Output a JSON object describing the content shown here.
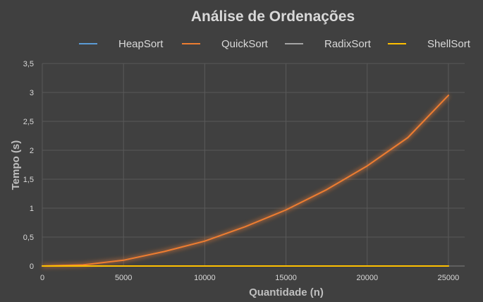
{
  "chart_data": {
    "type": "line",
    "title": "Análise de Ordenações",
    "xlabel": "Quantidade (n)",
    "ylabel": "Tempo (s)",
    "xlim": [
      0,
      26000
    ],
    "ylim": [
      0,
      3.5
    ],
    "xticks": [
      0,
      5000,
      10000,
      15000,
      20000,
      25000
    ],
    "xtick_labels": [
      "0",
      "5000",
      "10000",
      "15000",
      "20000",
      "25000"
    ],
    "yticks": [
      0,
      0.5,
      1,
      1.5,
      2,
      2.5,
      3,
      3.5
    ],
    "ytick_labels": [
      "0",
      "0,5",
      "1",
      "1,5",
      "2",
      "2,5",
      "3",
      "3,5"
    ],
    "grid": true,
    "legend_position": "top",
    "x": [
      0,
      2500,
      5000,
      7500,
      10000,
      12500,
      15000,
      17500,
      20000,
      22500,
      25000
    ],
    "series": [
      {
        "name": "HeapSort",
        "color": "#5b9bd5",
        "values": [
          0,
          0,
          0,
          0,
          0,
          0,
          0,
          0,
          0,
          0,
          0
        ]
      },
      {
        "name": "QuickSort",
        "color": "#ed7d31",
        "values": [
          0,
          0.02,
          0.1,
          0.25,
          0.43,
          0.68,
          0.97,
          1.32,
          1.73,
          2.22,
          2.95
        ]
      },
      {
        "name": "RadixSort",
        "color": "#a5a5a5",
        "values": [
          0,
          0,
          0,
          0,
          0,
          0,
          0,
          0,
          0,
          0,
          0
        ]
      },
      {
        "name": "ShellSort",
        "color": "#ffc000",
        "values": [
          0,
          0,
          0,
          0,
          0,
          0,
          0,
          0,
          0,
          0,
          0
        ]
      }
    ]
  }
}
